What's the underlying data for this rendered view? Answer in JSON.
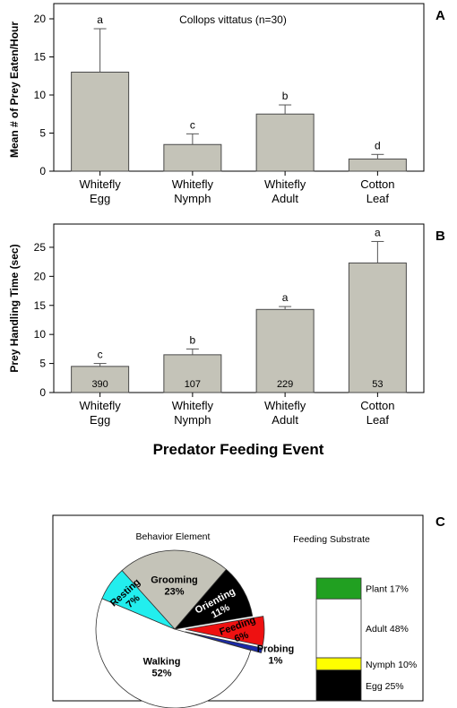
{
  "colors": {
    "bar_fill": "#c4c3b8",
    "bar_stroke": "#4a4a4a",
    "grooming": "#c4c3b8",
    "orienting": "#000000",
    "feeding": "#ee1111",
    "probing": "#1a2aa8",
    "walking": "#ffffff",
    "resting": "#22eeee",
    "plant": "#21a021",
    "adult": "#ffffff",
    "nymph": "#ffff00",
    "egg": "#000000"
  },
  "chart_data": [
    {
      "type": "bar",
      "panel": "A",
      "title": "Collops vittatus (n=30)",
      "xlabel": "",
      "ylabel": "Mean # of Prey Eaten/Hour",
      "ylim": [
        0,
        22
      ],
      "yticks": [
        0,
        5,
        10,
        15,
        20
      ],
      "categories": [
        [
          "Whitefly",
          "Egg"
        ],
        [
          "Whitefly",
          "Nymph"
        ],
        [
          "Whitefly",
          "Adult"
        ],
        [
          "Cotton",
          "Leaf"
        ]
      ],
      "values": [
        13.0,
        3.5,
        7.5,
        1.6
      ],
      "errors": [
        5.7,
        1.4,
        1.2,
        0.6
      ],
      "letters": [
        "a",
        "c",
        "b",
        "d"
      ],
      "bar_labels": [
        "",
        "",
        "",
        ""
      ]
    },
    {
      "type": "bar",
      "panel": "B",
      "title": "",
      "xlabel": "Predator Feeding Event",
      "ylabel": "Prey Handling Time (sec)",
      "ylim": [
        0,
        29
      ],
      "yticks": [
        0,
        5,
        10,
        15,
        20,
        25
      ],
      "categories": [
        [
          "Whitefly",
          "Egg"
        ],
        [
          "Whitefly",
          "Nymph"
        ],
        [
          "Whitefly",
          "Adult"
        ],
        [
          "Cotton",
          "Leaf"
        ]
      ],
      "values": [
        4.5,
        6.5,
        14.3,
        22.3
      ],
      "errors": [
        0.5,
        1.0,
        0.5,
        3.7
      ],
      "letters": [
        "c",
        "b",
        "a",
        "a"
      ],
      "bar_labels": [
        "390",
        "107",
        "229",
        "53"
      ]
    },
    {
      "type": "pie",
      "panel": "C",
      "title": "Behavior Element",
      "slices": [
        {
          "label": "Grooming",
          "pct": "23%",
          "value": 23,
          "color_key": "grooming",
          "exploded": false
        },
        {
          "label": "Orienting",
          "pct": "11%",
          "value": 11,
          "color_key": "orienting",
          "exploded": false
        },
        {
          "label": "Feeding",
          "pct": "6%",
          "value": 6,
          "color_key": "feeding",
          "exploded": true
        },
        {
          "label": "Probing",
          "pct": "1%",
          "value": 1,
          "color_key": "probing",
          "exploded": true
        },
        {
          "label": "Walking",
          "pct": "52%",
          "value": 52,
          "color_key": "walking",
          "exploded": false
        },
        {
          "label": "Resting",
          "pct": "7%",
          "value": 7,
          "color_key": "resting",
          "exploded": false
        }
      ]
    },
    {
      "type": "bar",
      "subtype": "stacked-100",
      "panel": "C",
      "title": "Feeding Substrate",
      "segments": [
        {
          "label": "Plant 17%",
          "value": 17,
          "color_key": "plant"
        },
        {
          "label": "Adult 48%",
          "value": 48,
          "color_key": "adult"
        },
        {
          "label": "Nymph 10%",
          "value": 10,
          "color_key": "nymph"
        },
        {
          "label": "Egg 25%",
          "value": 25,
          "color_key": "egg"
        }
      ]
    }
  ]
}
